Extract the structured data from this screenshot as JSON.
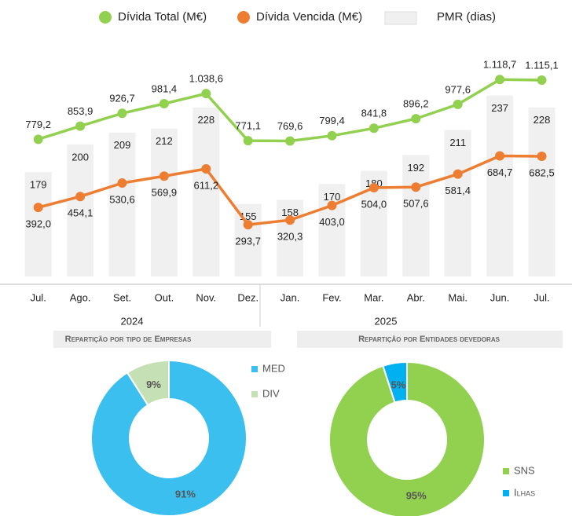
{
  "chart_data": [
    {
      "type": "combo",
      "categories": [
        "Jul.",
        "Ago.",
        "Set.",
        "Out.",
        "Nov.",
        "Dez.",
        "Jan.",
        "Fev.",
        "Mar.",
        "Abr.",
        "Mai.",
        "Jun.",
        "Jul."
      ],
      "group_labels": [
        "2024",
        "2025"
      ],
      "ylim": [
        0,
        1200
      ],
      "y2lim": [
        100,
        260
      ],
      "series": [
        {
          "name": "Dívida Total (M€)",
          "type": "line",
          "color": "#92d050",
          "values": [
            779.2,
            853.9,
            926.7,
            981.4,
            1038.6,
            771.1,
            769.6,
            799.4,
            841.8,
            896.2,
            977.6,
            1118.7,
            1115.1
          ],
          "value_labels": [
            "779,2",
            "853,9",
            "926,7",
            "981,4",
            "1.038,6",
            "771,1",
            "769,6",
            "799,4",
            "841,8",
            "896,2",
            "977,6",
            "1.118,7",
            "1.115,1"
          ]
        },
        {
          "name": "Dívida Vencida (M€)",
          "type": "line",
          "color": "#ed7d31",
          "values": [
            392.0,
            454.1,
            530.6,
            569.9,
            611.2,
            293.7,
            320.3,
            403.0,
            504.0,
            507.6,
            581.4,
            684.7,
            682.5
          ],
          "value_labels": [
            "392,0",
            "454,1",
            "530,6",
            "569,9",
            "611,2",
            "293,7",
            "320,3",
            "403,0",
            "504,0",
            "507,6",
            "581,4",
            "684,7",
            "682,5"
          ]
        },
        {
          "name": "PMR (dias)",
          "type": "bar",
          "axis": "y2",
          "color": "#f0f0f0",
          "values": [
            179,
            200,
            209,
            212,
            228,
            155,
            158,
            170,
            180,
            192,
            211,
            237,
            228
          ]
        }
      ]
    },
    {
      "type": "pie",
      "title": "Repartição por tipo de Empresas",
      "categories": [
        "MED",
        "DIV"
      ],
      "values": [
        91,
        9
      ],
      "value_labels": [
        "91%",
        "9%"
      ],
      "colors": [
        "#3bbfef",
        "#c5e0b4"
      ]
    },
    {
      "type": "pie",
      "title": "Repartição por Entidades devedoras",
      "categories": [
        "SNS",
        "Ilhas"
      ],
      "values": [
        95,
        5
      ],
      "value_labels": [
        "95%",
        "5%"
      ],
      "colors": [
        "#92d050",
        "#00b0f0"
      ]
    }
  ]
}
